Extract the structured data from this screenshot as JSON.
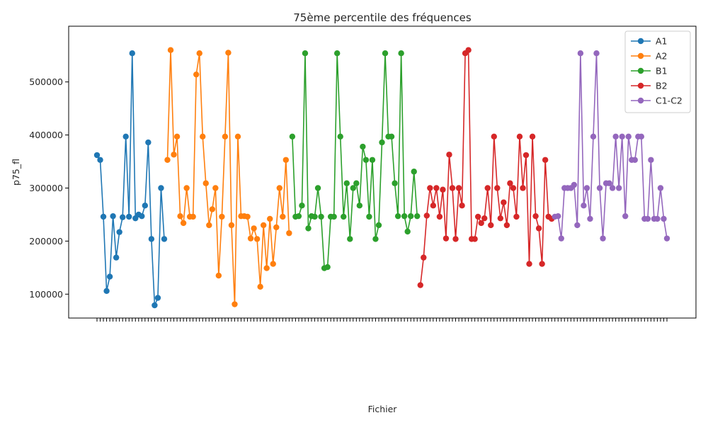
{
  "chart_data": {
    "type": "line",
    "title": "75ème percentile des fréquences",
    "xlabel": "Fichier",
    "ylabel": "p75_fl",
    "ylim": [
      55000,
      605000
    ],
    "yticks": [
      100000,
      200000,
      300000,
      400000,
      500000
    ],
    "ytick_labels": [
      "100000",
      "200000",
      "300000",
      "400000",
      "500000"
    ],
    "grid": false,
    "legend_position": "top-right",
    "markers": true,
    "series": [
      {
        "name": "A1",
        "color": "#1f77b4",
        "values": [
          362000,
          353000,
          246000,
          106000,
          133000,
          247000,
          169000,
          217000,
          245000,
          397000,
          246000,
          554000,
          243000,
          250000,
          247000,
          267000,
          386000,
          204000,
          79000,
          93000,
          300000,
          204000
        ]
      },
      {
        "name": "A2",
        "color": "#ff7f0e",
        "values": [
          353000,
          560000,
          363000,
          397000,
          247000,
          234000,
          300000,
          246000,
          246000,
          514000,
          554000,
          397000,
          309000,
          230000,
          260000,
          300000,
          135000,
          246000,
          397000,
          555000,
          230000,
          81000,
          397000,
          247000,
          247000,
          246000,
          205000,
          224000,
          204000,
          114000,
          230000,
          149000,
          242000,
          157000,
          226000,
          300000,
          246000,
          353000,
          215000
        ]
      },
      {
        "name": "B1",
        "color": "#2ca02c",
        "values": [
          397000,
          246000,
          247000,
          267000,
          554000,
          224000,
          247000,
          246000,
          300000,
          246000,
          149000,
          151000,
          246000,
          246000,
          554000,
          397000,
          246000,
          309000,
          204000,
          300000,
          309000,
          267000,
          378000,
          353000,
          246000,
          353000,
          204000,
          230000,
          386000,
          554000,
          397000,
          397000,
          309000,
          247000,
          554000,
          247000,
          218000,
          247000,
          331000,
          247000
        ]
      },
      {
        "name": "B2",
        "color": "#d62728",
        "values": [
          117000,
          169000,
          248000,
          300000,
          267000,
          300000,
          246000,
          297000,
          205000,
          363000,
          300000,
          204000,
          300000,
          267000,
          554000,
          560000,
          204000,
          204000,
          246000,
          234000,
          243000,
          300000,
          230000,
          397000,
          300000,
          243000,
          273000,
          230000,
          309000,
          300000,
          246000,
          397000,
          300000,
          362000,
          157000,
          397000,
          247000,
          224000,
          157000,
          353000,
          246000,
          242000
        ]
      },
      {
        "name": "C1-C2",
        "color": "#9467bd",
        "values": [
          246000,
          247000,
          205000,
          300000,
          300000,
          300000,
          306000,
          230000,
          554000,
          267000,
          300000,
          242000,
          397000,
          554000,
          300000,
          205000,
          309000,
          309000,
          300000,
          397000,
          300000,
          397000,
          247000,
          397000,
          353000,
          353000,
          397000,
          397000,
          242000,
          242000,
          353000,
          242000,
          242000,
          300000,
          242000,
          205000
        ]
      }
    ]
  }
}
